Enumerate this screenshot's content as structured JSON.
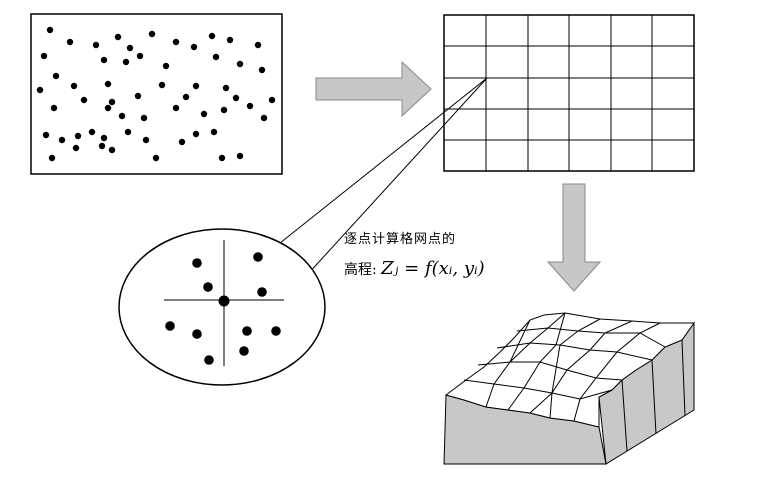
{
  "caption": {
    "line1": "逐点计算格网点的",
    "line2_prefix": "高程:",
    "line2_formula": "Zⱼ = f(xᵢ, yᵢ)"
  }
}
